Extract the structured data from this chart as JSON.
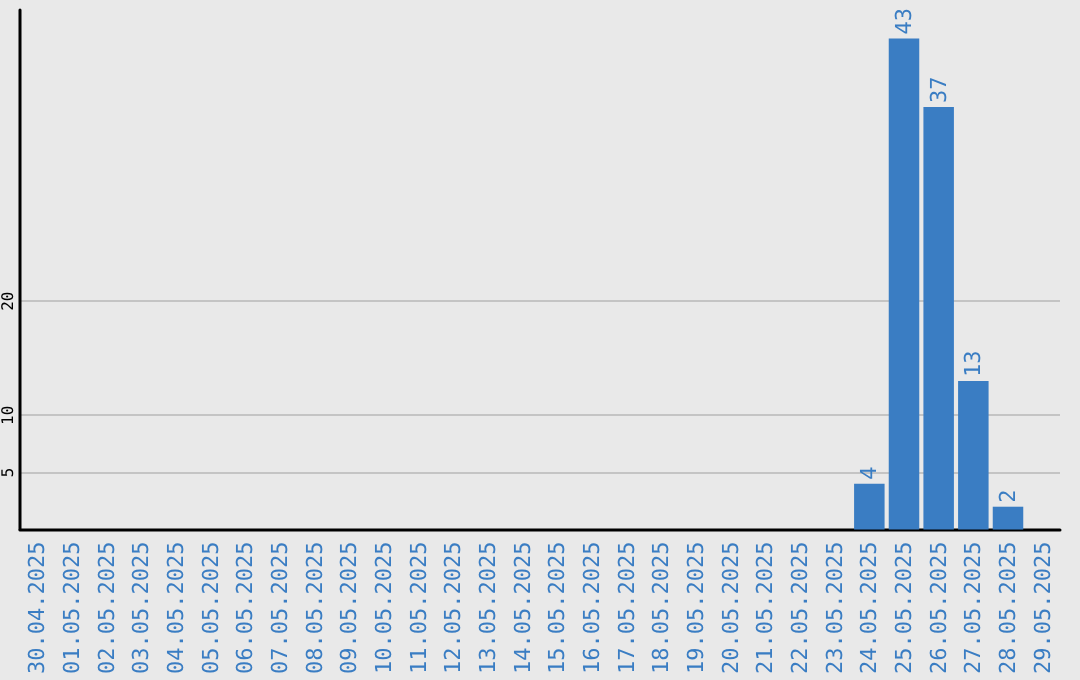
{
  "chart_data": {
    "type": "bar",
    "categories": [
      "30.04.2025",
      "01.05.2025",
      "02.05.2025",
      "03.05.2025",
      "04.05.2025",
      "05.05.2025",
      "06.05.2025",
      "07.05.2025",
      "08.05.2025",
      "09.05.2025",
      "10.05.2025",
      "11.05.2025",
      "12.05.2025",
      "13.05.2025",
      "14.05.2025",
      "15.05.2025",
      "16.05.2025",
      "17.05.2025",
      "18.05.2025",
      "19.05.2025",
      "20.05.2025",
      "21.05.2025",
      "22.05.2025",
      "23.05.2025",
      "24.05.2025",
      "25.05.2025",
      "26.05.2025",
      "27.05.2025",
      "28.05.2025",
      "29.05.2025"
    ],
    "values": [
      0,
      0,
      0,
      0,
      0,
      0,
      0,
      0,
      0,
      0,
      0,
      0,
      0,
      0,
      0,
      0,
      0,
      0,
      0,
      0,
      0,
      0,
      0,
      0,
      4,
      43,
      37,
      13,
      2,
      0
    ],
    "value_labels": [
      null,
      null,
      null,
      null,
      null,
      null,
      null,
      null,
      null,
      null,
      null,
      null,
      null,
      null,
      null,
      null,
      null,
      null,
      null,
      null,
      null,
      null,
      null,
      null,
      "4",
      "43",
      "37",
      "13",
      "2",
      null
    ],
    "color": "#3a7dc3",
    "ylim": [
      0,
      45.5
    ],
    "yticks": [
      5,
      10,
      20
    ],
    "grid": "y"
  }
}
